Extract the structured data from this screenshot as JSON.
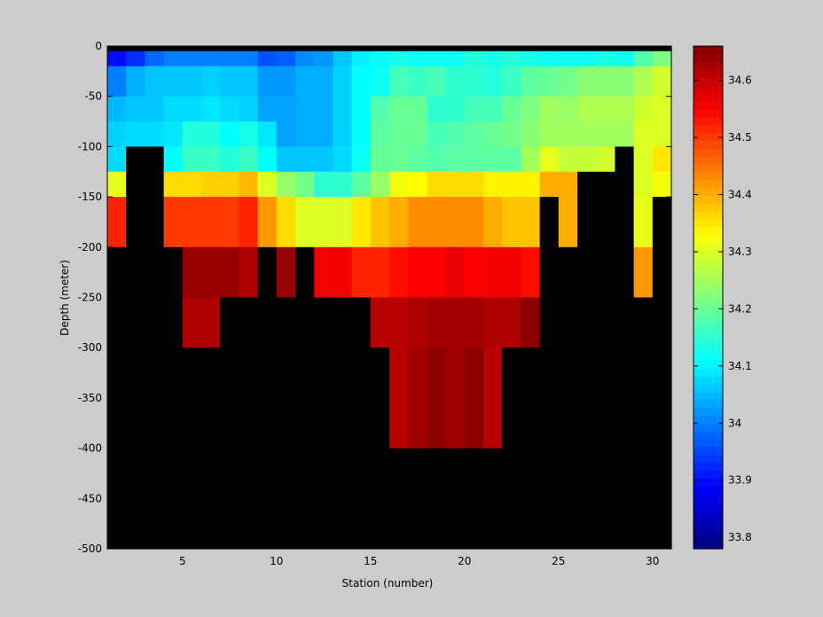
{
  "chart_data": {
    "type": "heatmap",
    "title": "",
    "xlabel": "Station (number)",
    "ylabel": "Depth (meter)",
    "xlim": [
      1,
      31
    ],
    "ylim": [
      -500,
      0
    ],
    "x_ticks": [
      5,
      10,
      15,
      20,
      25,
      30
    ],
    "y_ticks": [
      0,
      -50,
      -100,
      -150,
      -200,
      -250,
      -300,
      -350,
      -400,
      -450,
      -500
    ],
    "colorbar": {
      "min": 33.78,
      "max": 34.66,
      "ticks": [
        33.8,
        33.9,
        34,
        34.1,
        34.2,
        34.3,
        34.4,
        34.5,
        34.6
      ],
      "colormap": "jet"
    },
    "nodata_color": "#000000",
    "depth_rows": [
      {
        "top": 0,
        "bottom": -5
      },
      {
        "top": -5,
        "bottom": -20
      },
      {
        "top": -20,
        "bottom": -50
      },
      {
        "top": -50,
        "bottom": -75
      },
      {
        "top": -75,
        "bottom": -100
      },
      {
        "top": -100,
        "bottom": -125
      },
      {
        "top": -125,
        "bottom": -150
      },
      {
        "top": -150,
        "bottom": -200
      },
      {
        "top": -200,
        "bottom": -250
      },
      {
        "top": -250,
        "bottom": -300
      },
      {
        "top": -300,
        "bottom": -400
      },
      {
        "top": -400,
        "bottom": -500
      }
    ],
    "stations": [
      1,
      2,
      3,
      4,
      5,
      6,
      7,
      8,
      9,
      10,
      11,
      12,
      13,
      14,
      15,
      16,
      17,
      18,
      19,
      20,
      21,
      22,
      23,
      24,
      25,
      26,
      27,
      28,
      29,
      30
    ],
    "values": [
      [
        null,
        null,
        null,
        null,
        null,
        null,
        null,
        null,
        null,
        null,
        null,
        null,
        null,
        null,
        null,
        null,
        null,
        null,
        null,
        null,
        null,
        null,
        null,
        null,
        null,
        null,
        null,
        null,
        null,
        null
      ],
      [
        33.9,
        33.93,
        33.98,
        34.0,
        34.0,
        34.0,
        34.0,
        34.0,
        33.96,
        33.97,
        34.01,
        34.02,
        34.06,
        34.1,
        34.11,
        34.13,
        34.12,
        34.12,
        34.12,
        34.14,
        34.13,
        34.14,
        34.13,
        34.12,
        34.12,
        34.12,
        34.13,
        34.12,
        34.18,
        34.22
      ],
      [
        34.0,
        34.04,
        34.06,
        34.06,
        34.06,
        34.07,
        34.06,
        34.06,
        34.02,
        34.02,
        34.04,
        34.04,
        34.07,
        34.11,
        34.12,
        34.17,
        34.16,
        34.17,
        34.15,
        34.15,
        34.14,
        34.16,
        34.19,
        34.2,
        34.21,
        34.23,
        34.23,
        34.23,
        34.26,
        34.29
      ],
      [
        34.05,
        34.06,
        34.06,
        34.08,
        34.08,
        34.09,
        34.08,
        34.07,
        34.03,
        34.03,
        34.04,
        34.04,
        34.07,
        34.11,
        34.18,
        34.2,
        34.2,
        34.15,
        34.15,
        34.17,
        34.17,
        34.2,
        34.22,
        34.25,
        34.24,
        34.26,
        34.26,
        34.26,
        34.29,
        34.3
      ],
      [
        34.07,
        34.08,
        34.08,
        34.09,
        34.14,
        34.14,
        34.11,
        34.13,
        34.09,
        34.03,
        34.04,
        34.04,
        34.07,
        34.11,
        34.19,
        34.2,
        34.2,
        34.17,
        34.18,
        34.19,
        34.2,
        34.21,
        34.23,
        34.25,
        34.25,
        34.25,
        34.25,
        34.25,
        34.3,
        34.3
      ],
      [
        34.08,
        null,
        null,
        34.11,
        34.16,
        34.16,
        34.14,
        34.16,
        34.11,
        34.06,
        34.06,
        34.06,
        34.08,
        34.12,
        34.2,
        34.2,
        34.19,
        34.18,
        34.19,
        34.19,
        34.19,
        34.19,
        34.25,
        34.31,
        34.28,
        34.28,
        34.29,
        null,
        34.3,
        34.35
      ],
      [
        34.31,
        null,
        null,
        34.36,
        34.36,
        34.37,
        34.37,
        34.39,
        34.3,
        34.24,
        34.21,
        34.15,
        34.15,
        34.19,
        34.24,
        34.32,
        34.33,
        34.36,
        34.36,
        34.36,
        34.34,
        34.34,
        34.34,
        34.4,
        34.4,
        null,
        null,
        null,
        34.3,
        34.32
      ],
      [
        34.52,
        null,
        null,
        34.5,
        34.5,
        34.5,
        34.5,
        34.52,
        34.42,
        34.36,
        34.3,
        34.3,
        34.3,
        34.35,
        34.38,
        34.4,
        34.43,
        34.43,
        34.43,
        34.43,
        34.4,
        34.38,
        34.38,
        null,
        34.4,
        null,
        null,
        null,
        34.31,
        null
      ],
      [
        null,
        null,
        null,
        null,
        34.64,
        34.64,
        34.64,
        34.62,
        null,
        34.64,
        null,
        34.56,
        34.56,
        34.52,
        34.52,
        34.54,
        34.55,
        34.55,
        34.57,
        34.55,
        34.56,
        34.56,
        34.54,
        null,
        null,
        null,
        null,
        null,
        34.42,
        null
      ],
      [
        null,
        null,
        null,
        null,
        34.62,
        34.62,
        null,
        null,
        null,
        null,
        null,
        null,
        null,
        null,
        34.61,
        34.61,
        34.62,
        34.63,
        34.63,
        34.63,
        34.62,
        34.62,
        34.65,
        null,
        null,
        null,
        null,
        null,
        null,
        null
      ],
      [
        null,
        null,
        null,
        null,
        null,
        null,
        null,
        null,
        null,
        null,
        null,
        null,
        null,
        null,
        null,
        34.61,
        34.63,
        34.65,
        34.63,
        34.65,
        34.61,
        null,
        null,
        null,
        null,
        null,
        null,
        null,
        null,
        null
      ],
      [
        null,
        null,
        null,
        null,
        null,
        null,
        null,
        null,
        null,
        null,
        null,
        null,
        null,
        null,
        null,
        null,
        null,
        null,
        null,
        null,
        null,
        null,
        null,
        null,
        null,
        null,
        null,
        null,
        null,
        null
      ]
    ]
  }
}
